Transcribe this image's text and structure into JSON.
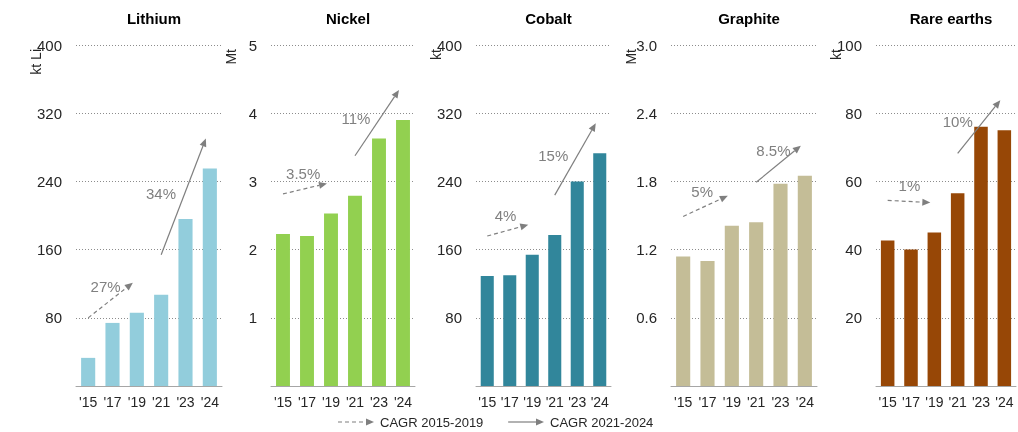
{
  "chart_data": [
    {
      "type": "bar",
      "title": "Lithium",
      "ylabel": "kt Li",
      "categories": [
        "'15",
        "'17",
        "'19",
        "'21",
        "'23",
        "'24"
      ],
      "ylim": [
        0,
        400
      ],
      "yticks": [
        80,
        160,
        240,
        320,
        400
      ],
      "grid": "y",
      "series": [
        {
          "color": "#92cddc",
          "values": [
            33,
            74,
            86,
            107,
            196,
            255
          ]
        }
      ],
      "annotations": [
        "27%",
        "34%",
        "CAGR 2015-2019",
        "CAGR 2021-2024"
      ]
    },
    {
      "type": "bar",
      "title": "Nickel",
      "ylabel": "Mt",
      "categories": [
        "'15",
        "'17",
        "'19",
        "'21",
        "'23",
        "'24"
      ],
      "ylim": [
        0,
        5
      ],
      "yticks": [
        1,
        2,
        3,
        4,
        5
      ],
      "grid": "y",
      "series": [
        {
          "color": "#92d050",
          "values": [
            2.23,
            2.2,
            2.53,
            2.79,
            3.63,
            3.9
          ]
        }
      ],
      "annotations": [
        "3.5%",
        "11%"
      ]
    },
    {
      "type": "bar",
      "title": "Cobalt",
      "ylabel": "kt",
      "categories": [
        "'15",
        "'17",
        "'19",
        "'21",
        "'23",
        "'24"
      ],
      "ylim": [
        0,
        400
      ],
      "yticks": [
        80,
        160,
        240,
        320,
        400
      ],
      "grid": "y",
      "series": [
        {
          "color": "#31869b",
          "values": [
            129,
            130,
            154,
            177,
            240,
            273
          ]
        }
      ],
      "annotations": [
        "4%",
        "15%"
      ]
    },
    {
      "type": "bar",
      "title": "Graphite",
      "ylabel": "Mt",
      "categories": [
        "'15",
        "'17",
        "'19",
        "'21",
        "'23",
        "'24"
      ],
      "ylim": [
        0,
        3
      ],
      "yticks": [
        0.6,
        1.2,
        1.8,
        2.4,
        {
          "value": 3,
          "label": "3.0"
        }
      ],
      "grid": "y",
      "series": [
        {
          "color": "#c4bd97",
          "values": [
            1.14,
            1.1,
            1.41,
            1.44,
            1.78,
            1.85
          ]
        }
      ],
      "annotations": [
        "5%",
        "8.5%"
      ]
    },
    {
      "type": "bar",
      "title": "Rare earths",
      "ylabel": "kt",
      "categories": [
        "'15",
        "'17",
        "'19",
        "'21",
        "'23",
        "'24"
      ],
      "ylim": [
        0,
        100
      ],
      "yticks": [
        20,
        40,
        60,
        80,
        100
      ],
      "grid": "y",
      "series": [
        {
          "color": "#974706",
          "values": [
            42.7,
            40,
            45,
            56.5,
            76,
            75
          ]
        }
      ],
      "annotations": [
        "1%",
        "10%"
      ]
    }
  ]
}
